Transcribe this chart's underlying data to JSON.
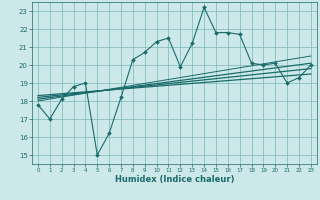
{
  "xlabel": "Humidex (Indice chaleur)",
  "background_color": "#cce8e8",
  "grid_color": "#7ab8b8",
  "line_color": "#1a6b6b",
  "xlim": [
    -0.5,
    23.5
  ],
  "ylim": [
    14.5,
    23.5
  ],
  "xticks": [
    0,
    1,
    2,
    3,
    4,
    5,
    6,
    7,
    8,
    9,
    10,
    11,
    12,
    13,
    14,
    15,
    16,
    17,
    18,
    19,
    20,
    21,
    22,
    23
  ],
  "yticks": [
    15,
    16,
    17,
    18,
    19,
    20,
    21,
    22,
    23
  ],
  "line1_x": [
    0,
    1,
    2,
    3,
    4,
    5,
    6,
    7,
    8,
    9,
    10,
    11,
    12,
    13,
    14,
    15,
    16,
    17,
    18,
    19,
    20,
    21,
    22,
    23
  ],
  "line1_y": [
    17.8,
    17.0,
    18.1,
    18.8,
    19.0,
    15.0,
    16.2,
    18.2,
    20.3,
    20.7,
    21.3,
    21.5,
    19.9,
    21.2,
    23.2,
    21.8,
    21.8,
    21.7,
    20.1,
    20.0,
    20.1,
    19.0,
    19.3,
    20.0
  ],
  "line2_x": [
    0,
    23
  ],
  "line2_y": [
    18.1,
    20.1
  ],
  "line3_x": [
    0,
    23
  ],
  "line3_y": [
    18.2,
    19.8
  ],
  "line4_x": [
    0,
    23
  ],
  "line4_y": [
    18.3,
    19.5
  ],
  "line5_x": [
    0,
    23
  ],
  "line5_y": [
    18.0,
    20.5
  ]
}
